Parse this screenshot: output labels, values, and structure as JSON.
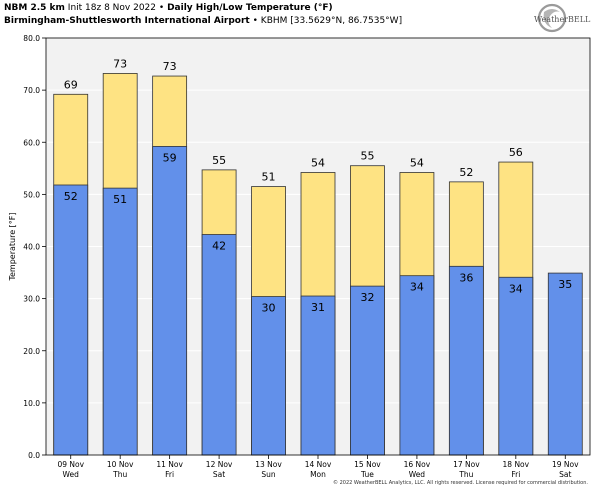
{
  "header": {
    "model": "NBM 2.5 km",
    "init": "Init 18z 8 Nov 2022",
    "title": "Daily High/Low Temperature (°F)",
    "station": "Birmingham-Shuttlesworth International Airport",
    "station_info": "KBHM [33.5629°N, 86.7535°W]"
  },
  "logo": {
    "text": "WeatherBELL"
  },
  "footer": "© 2022 WeatherBELL Analytics, LLC. All rights reserved. License required for commercial distribution.",
  "colors": {
    "high": "#fee383",
    "low": "#6290ea",
    "plot_bg": "#f2f2f2",
    "edge": "#333333"
  },
  "chart_data": {
    "type": "bar",
    "categories": [
      [
        "09 Nov",
        "Wed"
      ],
      [
        "10 Nov",
        "Thu"
      ],
      [
        "11 Nov",
        "Fri"
      ],
      [
        "12 Nov",
        "Sat"
      ],
      [
        "13 Nov",
        "Sun"
      ],
      [
        "14 Nov",
        "Mon"
      ],
      [
        "15 Nov",
        "Tue"
      ],
      [
        "16 Nov",
        "Wed"
      ],
      [
        "17 Nov",
        "Thu"
      ],
      [
        "18 Nov",
        "Fri"
      ],
      [
        "19 Nov",
        "Sat"
      ]
    ],
    "series": [
      {
        "values": [
          69.2,
          73.2,
          72.7,
          54.7,
          51.5,
          54.2,
          55.5,
          54.2,
          52.4,
          56.2,
          null
        ],
        "labels": [
          "69",
          "73",
          "73",
          "55",
          "51",
          "54",
          "55",
          "54",
          "52",
          "56",
          ""
        ]
      },
      {
        "values": [
          51.8,
          51.2,
          59.2,
          42.3,
          30.4,
          30.5,
          32.4,
          34.4,
          36.2,
          34.1,
          34.9
        ],
        "labels": [
          "52",
          "51",
          "59",
          "42",
          "30",
          "31",
          "32",
          "34",
          "36",
          "34",
          "35"
        ]
      }
    ],
    "ylabel": "Temperature [°F]",
    "ylim": [
      0,
      80
    ],
    "yticks": [
      "0.0",
      "10.0",
      "20.0",
      "30.0",
      "40.0",
      "50.0",
      "60.0",
      "70.0",
      "80.0"
    ],
    "grid": true
  }
}
